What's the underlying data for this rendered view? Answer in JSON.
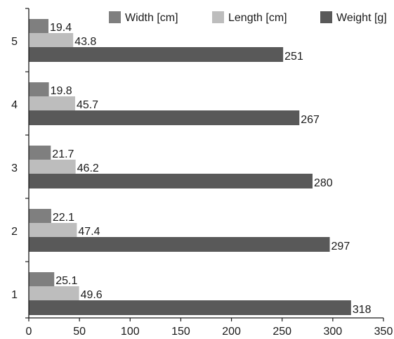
{
  "chart_data": {
    "type": "bar",
    "orientation": "horizontal",
    "categories": [
      "1",
      "2",
      "3",
      "4",
      "5"
    ],
    "series": [
      {
        "name": "Width [cm]",
        "color": "#7f7f7f",
        "values": [
          25.1,
          22.1,
          21.7,
          19.8,
          19.4
        ]
      },
      {
        "name": "Length [cm]",
        "color": "#bdbdbd",
        "values": [
          49.6,
          47.4,
          46.2,
          45.7,
          43.8
        ]
      },
      {
        "name": "Weight [g]",
        "color": "#595959",
        "values": [
          318,
          297,
          280,
          267,
          251
        ]
      }
    ],
    "xlim": [
      0,
      350
    ],
    "x_ticks": [
      "0",
      "50",
      "100",
      "150",
      "200",
      "250",
      "300",
      "350"
    ],
    "grid": false,
    "legend_position": "top-right",
    "data_labels": true
  }
}
